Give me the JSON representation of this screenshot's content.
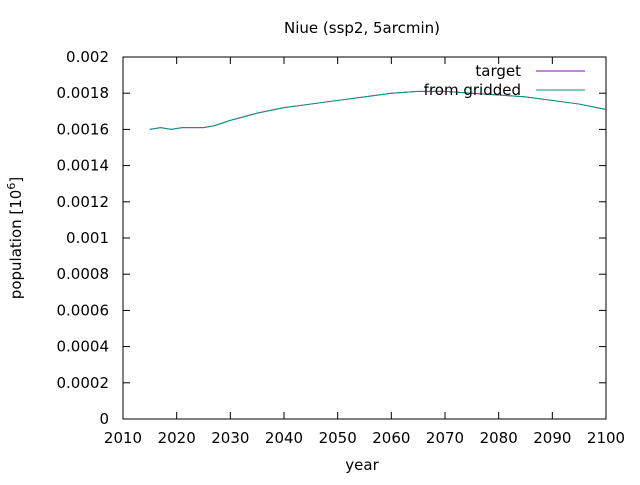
{
  "chart_data": {
    "type": "line",
    "title": "Niue (ssp2, 5arcmin)",
    "xlabel": "year",
    "ylabel_prefix": "population [10",
    "ylabel_sup": "6",
    "ylabel_suffix": "]",
    "xlim": [
      2010,
      2100
    ],
    "ylim": [
      0,
      0.002
    ],
    "x_ticks": [
      "2010",
      "2020",
      "2030",
      "2040",
      "2050",
      "2060",
      "2070",
      "2080",
      "2090",
      "2100"
    ],
    "y_ticks": [
      "0",
      "0.0002",
      "0.0004",
      "0.0006",
      "0.0008",
      "0.001",
      "0.0012",
      "0.0014",
      "0.0016",
      "0.0018",
      "0.002"
    ],
    "grid": false,
    "legend_position": "top-right",
    "series": [
      {
        "name": "target",
        "color": "#9400d3",
        "x": [
          2015,
          2017,
          2019,
          2021,
          2023,
          2025,
          2027,
          2030,
          2035,
          2040,
          2045,
          2050,
          2055,
          2060,
          2065,
          2070,
          2075,
          2080,
          2085,
          2090,
          2095,
          2100
        ],
        "y": [
          0.0016,
          0.00161,
          0.0016,
          0.00161,
          0.00161,
          0.00161,
          0.00162,
          0.00165,
          0.00169,
          0.00172,
          0.00174,
          0.00176,
          0.00178,
          0.0018,
          0.00181,
          0.00181,
          0.0018,
          0.00179,
          0.00178,
          0.00176,
          0.00174,
          0.00171
        ]
      },
      {
        "name": "from gridded",
        "color": "#009e73",
        "x": [
          2015,
          2017,
          2019,
          2021,
          2023,
          2025,
          2027,
          2030,
          2035,
          2040,
          2045,
          2050,
          2055,
          2060,
          2065,
          2070,
          2075,
          2080,
          2085,
          2090,
          2095,
          2100
        ],
        "y": [
          0.0016,
          0.00161,
          0.0016,
          0.00161,
          0.00161,
          0.00161,
          0.00162,
          0.00165,
          0.00169,
          0.00172,
          0.00174,
          0.00176,
          0.00178,
          0.0018,
          0.00181,
          0.00181,
          0.0018,
          0.00179,
          0.00178,
          0.00176,
          0.00174,
          0.00171
        ]
      }
    ]
  }
}
